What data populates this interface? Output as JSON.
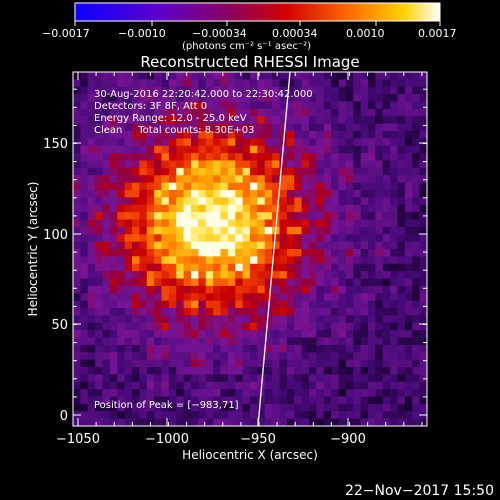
{
  "colorbar": {
    "tick_labels": [
      "−0.0017",
      "−0.0010",
      "−0.00034",
      "0.00034",
      "0.0010",
      "0.0017"
    ],
    "units": "(photons cm⁻² s⁻¹ asec⁻²)"
  },
  "image": {
    "title": "Reconstructed RHESSI Image",
    "info_lines": [
      "30-Aug-2016 22:20:42.000 to 22:30:42.000",
      "Detectors: 3F 8F, Att 0",
      "Energy Range: 12.0 - 25.0 keV",
      "Clean     Total counts: 8.30E+03"
    ],
    "peak_label": "Position of Peak = [−983,71]",
    "xlabel": "Heliocentric X (arcsec)",
    "ylabel": "Heliocentric Y (arcsec)",
    "x_ticks": [
      "−1050",
      "−1000",
      "−950",
      "−900"
    ],
    "y_ticks": [
      "0",
      "50",
      "100",
      "150"
    ]
  },
  "footer": {
    "timestamp": "22−Nov−2017 15:50"
  }
}
